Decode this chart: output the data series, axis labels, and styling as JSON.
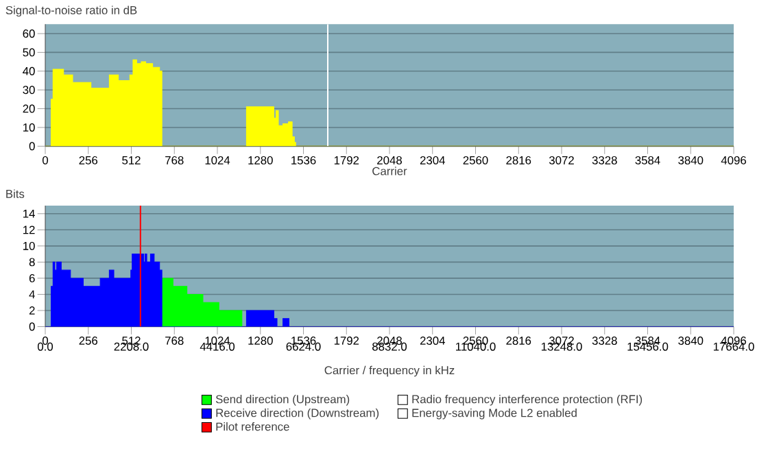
{
  "chart_data": [
    {
      "type": "area",
      "title": "Signal-to-noise ratio in dB",
      "xlabel": "Carrier",
      "xlim": [
        0,
        4096
      ],
      "xticks": [
        0,
        256,
        512,
        768,
        1024,
        1280,
        1536,
        1792,
        2048,
        2304,
        2560,
        2816,
        3072,
        3328,
        3584,
        3840,
        4096
      ],
      "ylim": [
        0,
        65
      ],
      "yticks": [
        0,
        10,
        20,
        30,
        40,
        50,
        60
      ],
      "grid": "y",
      "series": [
        {
          "color": "#ffff00",
          "x": [
            0,
            33,
            35,
            46,
            82,
            109,
            163,
            272,
            313,
            381,
            435,
            503,
            522,
            544,
            571,
            598,
            639,
            680,
            693,
            694,
            1187,
            1197,
            1352,
            1360,
            1373,
            1387,
            1414,
            1447,
            1469,
            1482,
            1490,
            4096
          ],
          "values": [
            0,
            0,
            25,
            41,
            41,
            38,
            34,
            31,
            31,
            38,
            35,
            38,
            46,
            44,
            45,
            44,
            42,
            40,
            40,
            0,
            0,
            21,
            21,
            15,
            19,
            11,
            12,
            13,
            5,
            2,
            0,
            0
          ]
        }
      ],
      "ref_lines": [
        {
          "axis": "x",
          "value": 1681,
          "color": "#ffffff"
        }
      ]
    },
    {
      "type": "area",
      "title": "Bits",
      "xlabel": "Carrier / frequency in kHz",
      "xlim": [
        0,
        4096
      ],
      "xticks": [
        0,
        256,
        512,
        768,
        1024,
        1280,
        1536,
        1792,
        2048,
        2304,
        2560,
        2816,
        3072,
        3328,
        3584,
        3840,
        4096
      ],
      "x2lim": [
        0,
        17664
      ],
      "x2ticks": [
        {
          "value": 0,
          "label": "0.0"
        },
        {
          "value": 2208,
          "label": "2208.0"
        },
        {
          "value": 4416,
          "label": "4416.0"
        },
        {
          "value": 6624,
          "label": "6624.0"
        },
        {
          "value": 8832,
          "label": "8832.0"
        },
        {
          "value": 11040,
          "label": "11040.0"
        },
        {
          "value": 13248,
          "label": "13248.0"
        },
        {
          "value": 15456,
          "label": "15456.0"
        },
        {
          "value": 17664,
          "label": "17664.0"
        }
      ],
      "ylim": [
        0,
        15
      ],
      "yticks": [
        0,
        2,
        4,
        6,
        8,
        10,
        12,
        14
      ],
      "grid": "y",
      "legend": "bottom",
      "series": [
        {
          "name": "Send direction (Upstream)",
          "color": "#00ff00",
          "x": [
            694,
            760,
            843,
            938,
            1033,
            1170
          ],
          "values": [
            6,
            5,
            4,
            3,
            2,
            0
          ]
        },
        {
          "name": "Receive direction (Downstream)",
          "color": "#0000ff",
          "x": [
            0,
            35,
            46,
            57,
            68,
            95,
            150,
            226,
            327,
            381,
            408,
            509,
            517,
            585,
            593,
            604,
            626,
            648,
            680,
            694,
            1197,
            1360,
            1379,
            1414,
            1450,
            4096
          ],
          "values": [
            0,
            5,
            8,
            7,
            8,
            7,
            6,
            5,
            6,
            7,
            6,
            7,
            9,
            8,
            9,
            8,
            9,
            8,
            7,
            0,
            2,
            1,
            0,
            1,
            0,
            0
          ]
        }
      ],
      "ref_lines": [
        {
          "axis": "x",
          "value": 566,
          "color": "#ff0000",
          "label": "Pilot reference"
        }
      ],
      "annotations": [
        "Radio frequency interference protection (RFI)",
        "Energy-saving Mode L2 enabled"
      ]
    }
  ]
}
